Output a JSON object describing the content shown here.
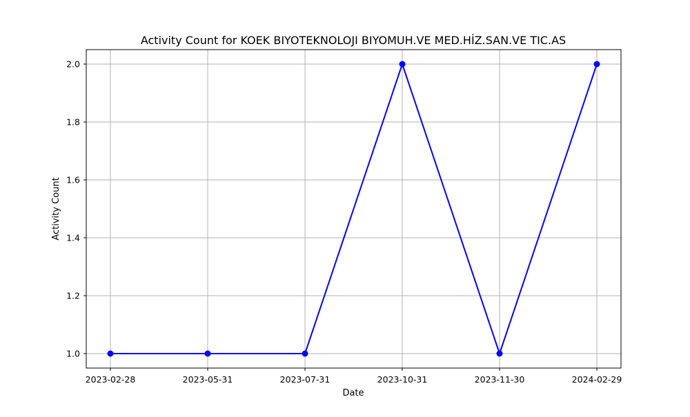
{
  "chart_data": {
    "type": "line",
    "title": "Activity Count for KOEK BIYOTEKNOLOJI BIYOMUH.VE MED.HİZ.SAN.VE TIC.AS",
    "xlabel": "Date",
    "ylabel": "Activity Count",
    "categories": [
      "2023-02-28",
      "2023-05-31",
      "2023-07-31",
      "2023-10-31",
      "2023-11-30",
      "2024-02-29"
    ],
    "series": [
      {
        "values": [
          1,
          1,
          1,
          2,
          1,
          2
        ]
      }
    ],
    "yticks": [
      "1.0",
      "1.2",
      "1.4",
      "1.6",
      "1.8",
      "2.0"
    ],
    "ylim": [
      0.95,
      2.05
    ],
    "grid": true,
    "line_color": "#0000ff",
    "marker": "circle"
  }
}
